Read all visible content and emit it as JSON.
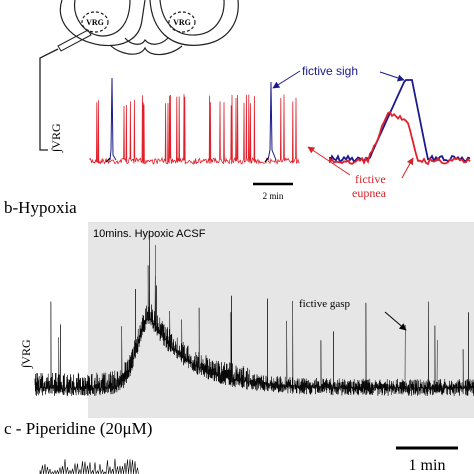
{
  "panel_a": {
    "brainstem_labels": [
      "VRG",
      "VRG"
    ],
    "trace_label": "∫VRG",
    "scale_bar": "2 min",
    "sigh_label": "fictive sigh",
    "eupnea_label": [
      "fictive",
      "eupnea"
    ]
  },
  "panel_b": {
    "title": "b-Hypoxia",
    "condition": "10mins. Hypoxic ACSF",
    "trace_label": "∫VRG",
    "gasp_label": "fictive gasp"
  },
  "panel_c": {
    "title": "c - Piperidine (20μM)",
    "scale_bar": "1 min"
  }
}
